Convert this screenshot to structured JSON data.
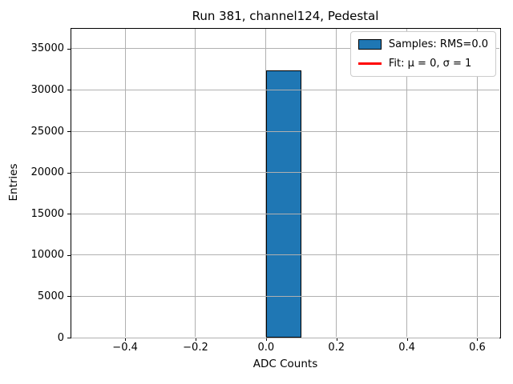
{
  "chart_data": {
    "type": "bar",
    "title": "Run 381, channel124, Pedestal",
    "xlabel": "ADC Counts",
    "ylabel": "Entries",
    "xlim": [
      -0.555,
      0.665
    ],
    "ylim": [
      0,
      37500
    ],
    "grid": true,
    "grid_color": "#b0b0b0",
    "background_color": "#ffffff",
    "xticks": [
      {
        "value": -0.4,
        "label": "−0.4"
      },
      {
        "value": -0.2,
        "label": "−0.2"
      },
      {
        "value": 0.0,
        "label": "0.0"
      },
      {
        "value": 0.2,
        "label": "0.2"
      },
      {
        "value": 0.4,
        "label": "0.4"
      },
      {
        "value": 0.6,
        "label": "0.6"
      }
    ],
    "yticks": [
      {
        "value": 0,
        "label": "0"
      },
      {
        "value": 5000,
        "label": "5000"
      },
      {
        "value": 10000,
        "label": "10000"
      },
      {
        "value": 15000,
        "label": "15000"
      },
      {
        "value": 20000,
        "label": "20000"
      },
      {
        "value": 25000,
        "label": "25000"
      },
      {
        "value": 30000,
        "label": "30000"
      },
      {
        "value": 35000,
        "label": "35000"
      }
    ],
    "bars": [
      {
        "x0": 0.0,
        "x1": 0.1,
        "value": 32400
      }
    ],
    "bar_color": "#1f77b4",
    "bar_edge_color": "#000000",
    "legend": {
      "position": "upper right",
      "items": [
        {
          "swatch": "patch",
          "color": "#1f77b4",
          "edge_color": "#000000",
          "label": "Samples: RMS=0.0"
        },
        {
          "swatch": "line",
          "color": "#ff0000",
          "label": "Fit: μ = 0, σ = 1"
        }
      ]
    }
  }
}
